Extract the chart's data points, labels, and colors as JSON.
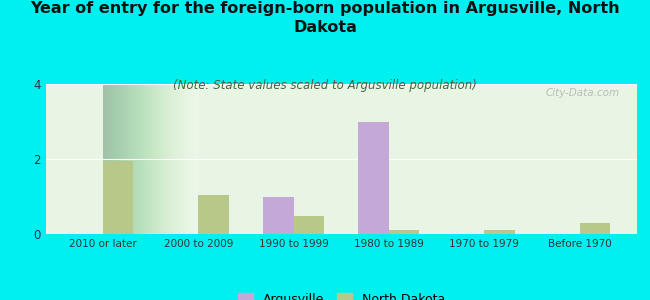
{
  "categories": [
    "2010 or later",
    "2000 to 2009",
    "1990 to 1999",
    "1980 to 1989",
    "1970 to 1979",
    "Before 1970"
  ],
  "argusville": [
    0,
    0,
    1.0,
    3.0,
    0,
    0
  ],
  "north_dakota": [
    1.95,
    1.05,
    0.48,
    0.12,
    0.1,
    0.3
  ],
  "argusville_color": "#c4a8d8",
  "north_dakota_color": "#b8c888",
  "title": "Year of entry for the foreign-born population in Argusville, North\nDakota",
  "subtitle": "(Note: State values scaled to Argusville population)",
  "ylim": [
    0,
    4
  ],
  "yticks": [
    0,
    2,
    4
  ],
  "background_color": "#00f0f0",
  "plot_bg_left": "#d0e8d0",
  "plot_bg_right": "#f0faf0",
  "watermark": "City-Data.com",
  "bar_width": 0.32,
  "legend_argusville": "Argusville",
  "legend_nd": "North Dakota",
  "title_fontsize": 11.5,
  "subtitle_fontsize": 8.5
}
